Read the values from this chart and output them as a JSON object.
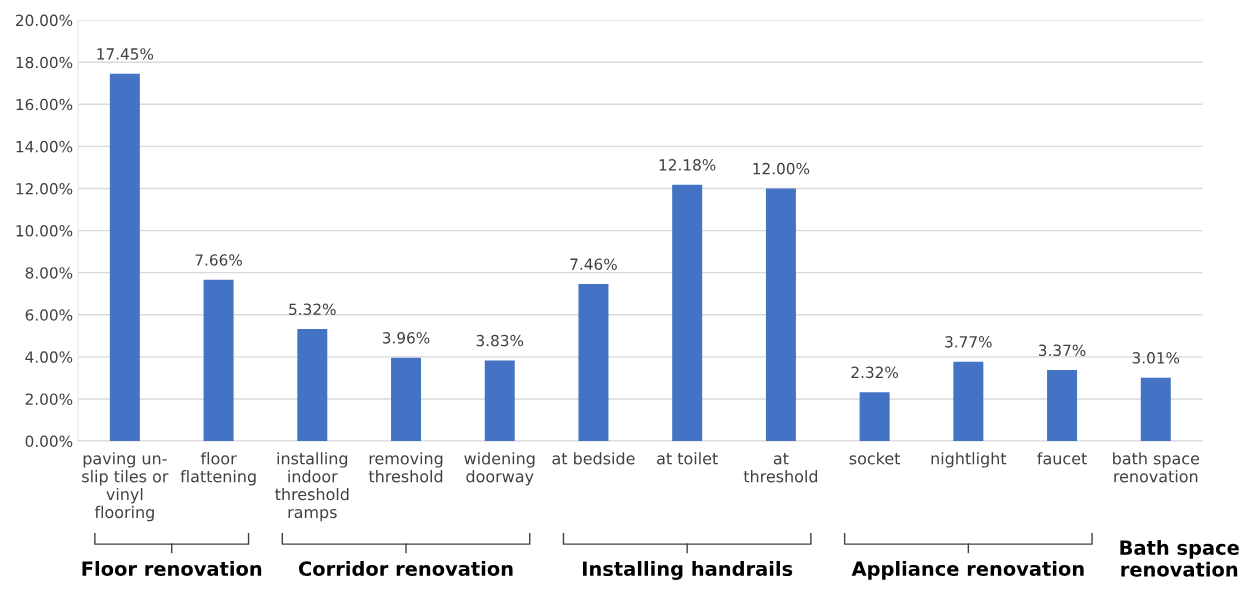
{
  "chart_data": {
    "type": "bar",
    "categories": [
      "paving un-\nslip tiles or\nvinyl\nflooring",
      "floor\nflattening",
      "installing\nindoor\nthreshold\nramps",
      "removing\nthreshold",
      "widening\ndoorway",
      "at bedside",
      "at toilet",
      "at\nthreshold",
      "socket",
      "nightlight",
      "faucet",
      "bath space\nrenovation"
    ],
    "values": [
      17.45,
      7.66,
      5.32,
      3.96,
      3.83,
      7.46,
      12.18,
      12.0,
      2.32,
      3.77,
      3.37,
      3.01
    ],
    "value_labels": [
      "17.45%",
      "7.66%",
      "5.32%",
      "3.96%",
      "3.83%",
      "7.46%",
      "12.18%",
      "12.00%",
      "2.32%",
      "3.77%",
      "3.37%",
      "3.01%"
    ],
    "color": "#4472c4",
    "ylim": [
      0,
      20
    ],
    "yticks": [
      {
        "value": 0,
        "label": "0.00%"
      },
      {
        "value": 2,
        "label": "2.00%"
      },
      {
        "value": 4,
        "label": "4.00%"
      },
      {
        "value": 6,
        "label": "6.00%"
      },
      {
        "value": 8,
        "label": "8.00%"
      },
      {
        "value": 10,
        "label": "10.00%"
      },
      {
        "value": 12,
        "label": "12.00%"
      },
      {
        "value": 14,
        "label": "14.00%"
      },
      {
        "value": 16,
        "label": "16.00%"
      },
      {
        "value": 18,
        "label": "18.00%"
      },
      {
        "value": 20,
        "label": "20.00%"
      }
    ],
    "grid": "y",
    "annotations": [
      "Floor renovation",
      "Corridor renovation",
      "Installing handrails",
      "Appliance renovation",
      "Bath space\nrenovation"
    ]
  }
}
